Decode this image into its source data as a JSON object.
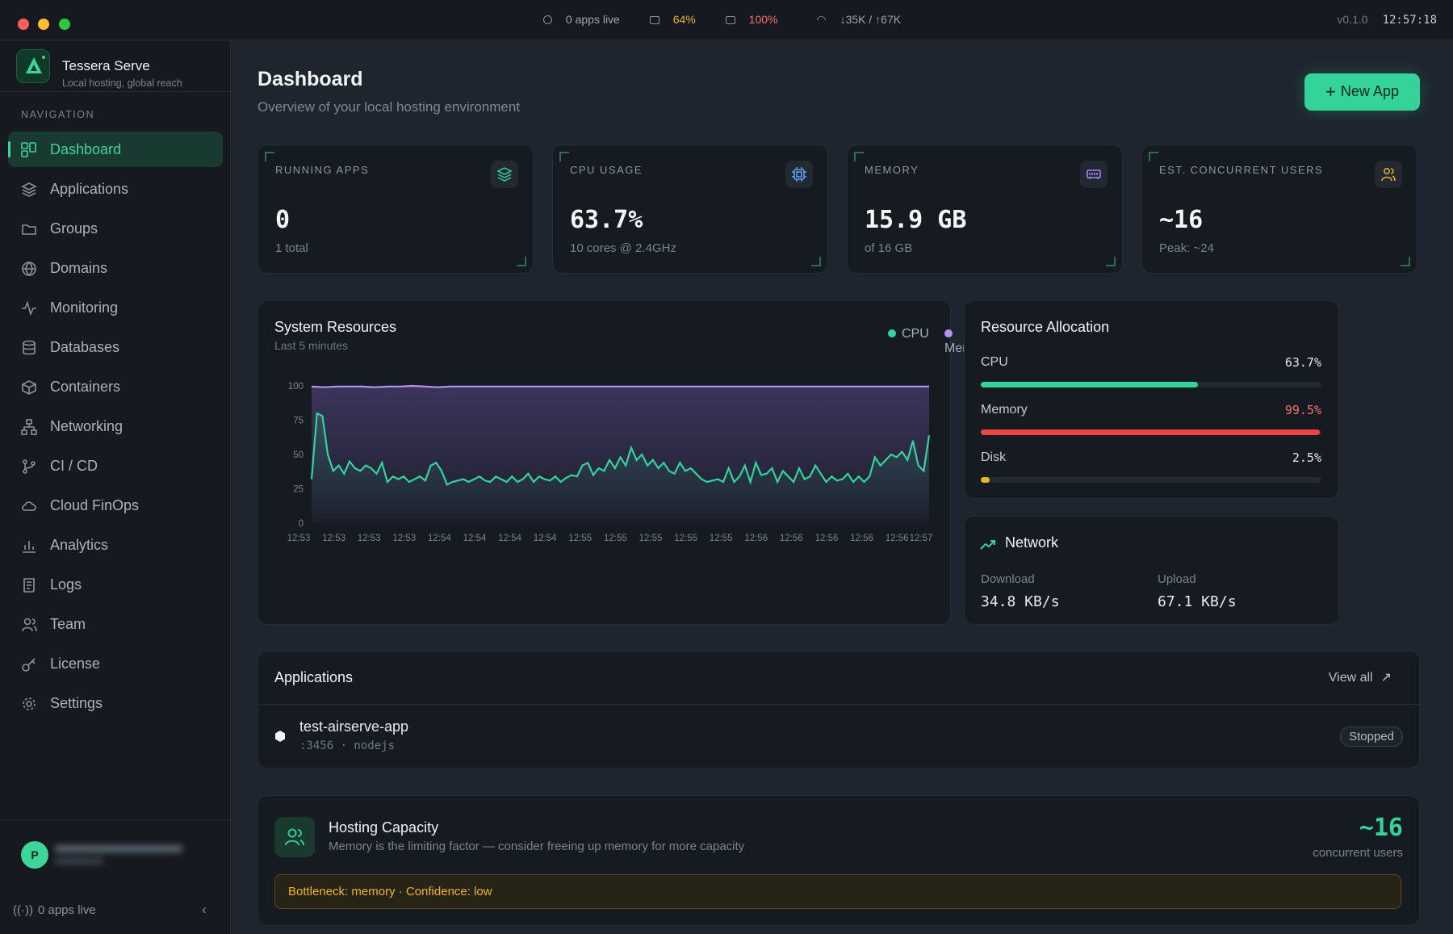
{
  "titlebar": {
    "apps_live": "0 apps live",
    "cpu": "64%",
    "mem": "100%",
    "net": "↓35K / ↑67K",
    "version": "v0.1.0",
    "time": "12:57:18",
    "colors": {
      "cpu": "#f0b429",
      "mem": "#f87171"
    }
  },
  "brand": {
    "name": "Tessera Serve",
    "tagline": "Local hosting, global reach"
  },
  "sidebar": {
    "section_title": "NAVIGATION",
    "items": [
      {
        "label": "Dashboard",
        "icon": "dashboard-icon",
        "active": true
      },
      {
        "label": "Applications",
        "icon": "layers-icon"
      },
      {
        "label": "Groups",
        "icon": "folder-icon"
      },
      {
        "label": "Domains",
        "icon": "globe-icon"
      },
      {
        "label": "Monitoring",
        "icon": "activity-icon"
      },
      {
        "label": "Databases",
        "icon": "database-icon"
      },
      {
        "label": "Containers",
        "icon": "box-icon"
      },
      {
        "label": "Networking",
        "icon": "network-icon"
      },
      {
        "label": "CI / CD",
        "icon": "git-branch-icon"
      },
      {
        "label": "Cloud FinOps",
        "icon": "cloud-icon"
      },
      {
        "label": "Analytics",
        "icon": "bar-chart-icon"
      },
      {
        "label": "Logs",
        "icon": "scroll-icon"
      },
      {
        "label": "Team",
        "icon": "users-icon"
      },
      {
        "label": "License",
        "icon": "key-icon"
      },
      {
        "label": "Settings",
        "icon": "gear-icon"
      }
    ],
    "user_initial": "P",
    "apps_live": "0 apps live"
  },
  "header": {
    "title": "Dashboard",
    "subtitle": "Overview of your local hosting environment",
    "new_app": "New App"
  },
  "kpis": [
    {
      "label": "RUNNING APPS",
      "value": "0",
      "sub": "1 total",
      "icon": "layers-icon",
      "color": "#34d399"
    },
    {
      "label": "CPU USAGE",
      "value": "63.7%",
      "sub": "10 cores @ 2.4GHz",
      "icon": "cpu-icon",
      "color": "#60a5fa"
    },
    {
      "label": "MEMORY",
      "value": "15.9 GB",
      "sub": "of 16 GB",
      "icon": "memory-icon",
      "color": "#a78bfa"
    },
    {
      "label": "EST. CONCURRENT USERS",
      "value": "~16",
      "sub": "Peak: ~24",
      "icon": "users-icon",
      "color": "#f0b429"
    }
  ],
  "system_resources": {
    "title": "System Resources",
    "subtitle": "Last 5 minutes",
    "legend": [
      "CPU",
      "Memory"
    ]
  },
  "chart_data": {
    "type": "area",
    "ylim": [
      0,
      100
    ],
    "yticks": [
      0,
      25,
      50,
      75,
      100
    ],
    "xticks": [
      "12:53",
      "12:53",
      "12:53",
      "12:53",
      "12:54",
      "12:54",
      "12:54",
      "12:54",
      "12:55",
      "12:55",
      "12:55",
      "12:55",
      "12:55",
      "12:56",
      "12:56",
      "12:56",
      "12:56",
      "12:56",
      "12:57"
    ],
    "series": [
      {
        "name": "CPU",
        "color": "#34d399",
        "values": [
          32,
          80,
          78,
          50,
          38,
          42,
          36,
          45,
          40,
          38,
          42,
          40,
          36,
          44,
          30,
          34,
          32,
          34,
          30,
          32,
          34,
          31,
          42,
          44,
          38,
          28,
          30,
          31,
          32,
          30,
          32,
          34,
          31,
          30,
          34,
          32,
          30,
          34,
          30,
          32,
          36,
          30,
          34,
          32,
          31,
          34,
          30,
          33,
          35,
          34,
          42,
          44,
          35,
          40,
          38,
          46,
          40,
          48,
          42,
          55,
          46,
          50,
          42,
          46,
          40,
          44,
          38,
          36,
          44,
          38,
          40,
          36,
          32,
          30,
          31,
          32,
          30,
          40,
          30,
          34,
          42,
          30,
          44,
          35,
          36,
          40,
          30,
          38,
          34,
          30,
          40,
          32,
          34,
          42,
          36,
          30,
          34,
          31,
          32,
          36,
          30,
          34,
          30,
          34,
          48,
          42,
          46,
          50,
          48,
          52,
          46,
          60,
          42,
          38,
          64
        ]
      },
      {
        "name": "Memory",
        "color": "#b794f4",
        "values": [
          99.5,
          99,
          99.5,
          99.5,
          99.5,
          99,
          99.5,
          99.5,
          100,
          99.5,
          99,
          99.5,
          99.5,
          99.5,
          99.5,
          99.5,
          99.5,
          99.5,
          99.5,
          99.5,
          99.5,
          99.5,
          99.5,
          99.5,
          99.5,
          99.5,
          99.5,
          99.5,
          99.5,
          99.5,
          99.5,
          99.5,
          99.5,
          99.5,
          99.5,
          99.5,
          99.5,
          99.5,
          99.5,
          99.5,
          99.5,
          99.5,
          99.5,
          99.5,
          99.5,
          99.5,
          99.5,
          99.5,
          99.5,
          99.5
        ]
      }
    ]
  },
  "allocation": {
    "title": "Resource Allocation",
    "rows": [
      {
        "label": "CPU",
        "value": "63.7%",
        "pct": 63.7,
        "color": "#34d399",
        "vcolor": "#e6e9ee"
      },
      {
        "label": "Memory",
        "value": "99.5%",
        "pct": 99.5,
        "color": "#ef4444",
        "vcolor": "#f87171"
      },
      {
        "label": "Disk",
        "value": "2.5%",
        "pct": 2.5,
        "color": "#f0b429",
        "vcolor": "#e6e9ee"
      }
    ]
  },
  "network": {
    "title": "Network",
    "download_label": "Download",
    "download": "34.8 KB/s",
    "upload_label": "Upload",
    "upload": "67.1 KB/s"
  },
  "applications": {
    "title": "Applications",
    "view_all": "View all",
    "items": [
      {
        "name": "test-airserve-app",
        "meta": ":3456 · nodejs",
        "status": "Stopped"
      }
    ]
  },
  "capacity": {
    "title": "Hosting Capacity",
    "subtitle": "Memory is the limiting factor — consider freeing up memory for more capacity",
    "value": "~16",
    "unit": "concurrent users",
    "bottleneck": "Bottleneck: memory · Confidence: low"
  }
}
